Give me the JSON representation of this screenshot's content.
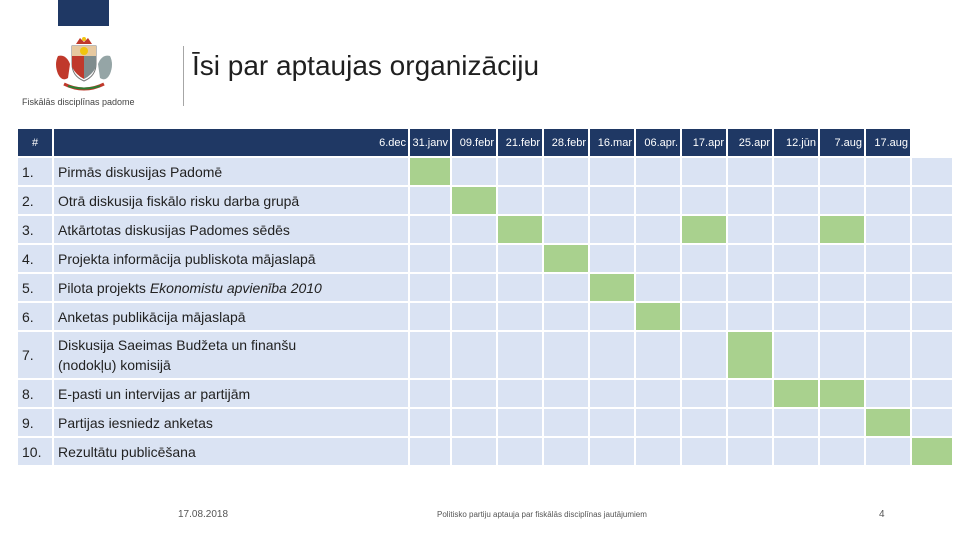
{
  "header": {
    "title": "Īsi par aptaujas organizāciju",
    "logo_text": "Fiskālās disciplīnas padome"
  },
  "table": {
    "col_hash": "#",
    "dates": [
      "6.dec",
      "31.janv",
      "09.febr",
      "21.febr",
      "28.febr",
      "16.mar",
      "06.apr.",
      "17.apr",
      "25.apr",
      "12.jūn",
      "7.aug",
      "17.aug"
    ],
    "rows": [
      {
        "num": "1.",
        "label": "Pirmās diskusijas Padomē",
        "active": [
          0
        ]
      },
      {
        "num": "2.",
        "label": "Otrā diskusija fiskālo risku darba grupā",
        "active": [
          1
        ]
      },
      {
        "num": "3.",
        "label": "Atkārtotas diskusijas Padomes sēdēs",
        "active": [
          2,
          6,
          9
        ]
      },
      {
        "num": "4.",
        "label": "Projekta informācija publiskota mājaslapā",
        "active": [
          3
        ]
      },
      {
        "num": "5.",
        "label_plain": "Pilota projekts ",
        "label_italic": "Ekonomistu apvienība 2010",
        "active": [
          4
        ]
      },
      {
        "num": "6.",
        "label": "Anketas publikācija mājaslapā",
        "active": [
          5
        ]
      },
      {
        "num": "7.",
        "label_line1": "Diskusija Saeimas Budžeta un finanšu",
        "label_line2": "(nodokļu) komisijā",
        "active": [
          7
        ]
      },
      {
        "num": "8.",
        "label": "E-pasti un intervijas ar partijām",
        "active": [
          8,
          9
        ]
      },
      {
        "num": "9.",
        "label": "Partijas iesniedz anketas",
        "active": [
          10
        ]
      },
      {
        "num": "10.",
        "label": "Rezultātu publicēšana",
        "active": [
          11
        ]
      }
    ]
  },
  "footer": {
    "date": "17.08.2018",
    "caption": "Politisko partiju aptauja par fiskālās disciplīnas jautājumiem",
    "page": "4"
  },
  "colors": {
    "header_bg": "#1f3864",
    "cell_bg": "#dae3f3",
    "active_bg": "#a9d18e"
  }
}
